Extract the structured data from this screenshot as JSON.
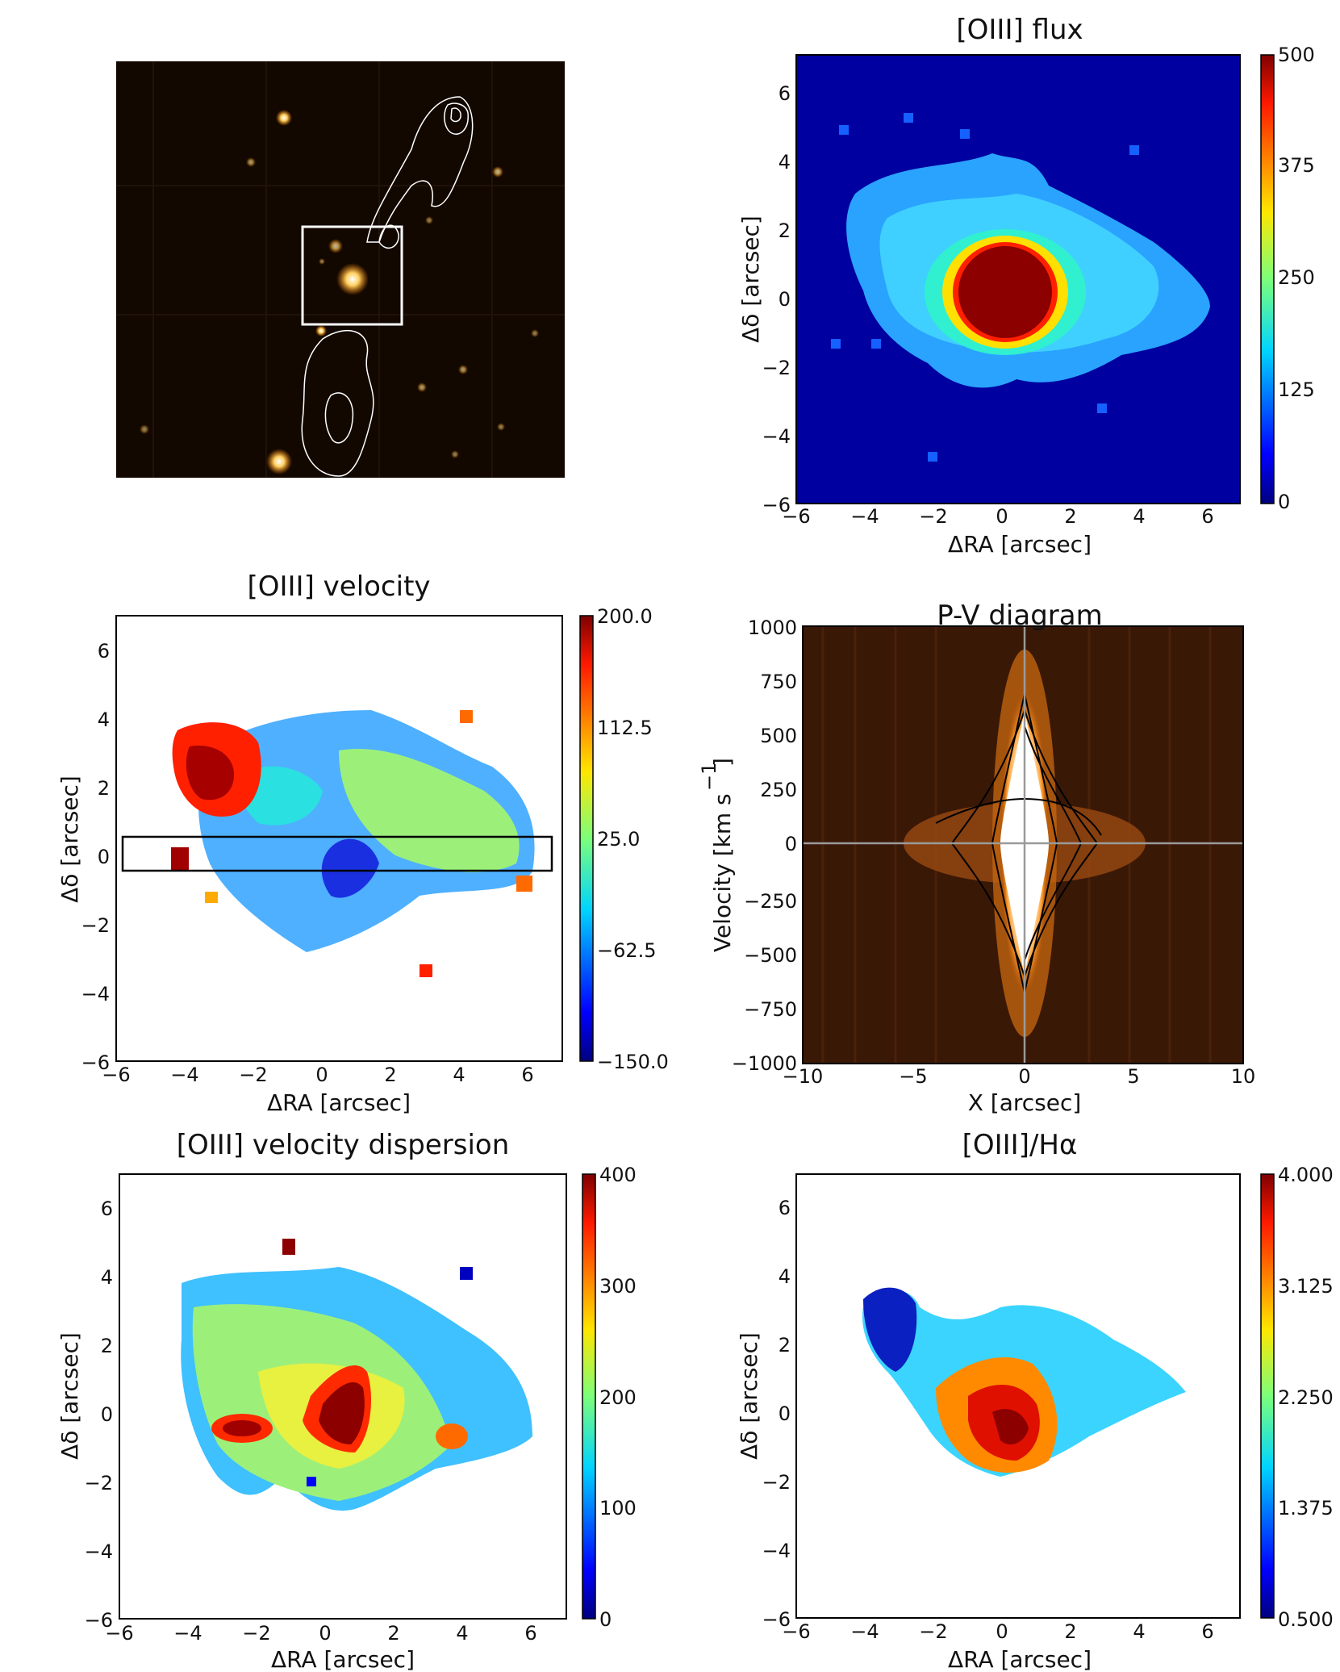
{
  "panels": [
    {
      "id": "image",
      "type": "image",
      "title": ""
    },
    {
      "id": "flux",
      "type": "heatmap",
      "title": "[OIII] flux",
      "xlabel": "ΔRA [arcsec]",
      "ylabel": "Δδ [arcsec]",
      "xticks": [
        "−6",
        "−4",
        "−2",
        "0",
        "2",
        "4",
        "6"
      ],
      "yticks": [
        "−6",
        "−4",
        "−2",
        "0",
        "2",
        "4",
        "6"
      ],
      "cbar": [
        "0",
        "125",
        "250",
        "375",
        "500"
      ]
    },
    {
      "id": "velocity",
      "type": "heatmap",
      "title": "[OIII] velocity",
      "xlabel": "ΔRA [arcsec]",
      "ylabel": "Δδ [arcsec]",
      "xticks": [
        "−6",
        "−4",
        "−2",
        "0",
        "2",
        "4",
        "6"
      ],
      "yticks": [
        "−6",
        "−4",
        "−2",
        "0",
        "2",
        "4",
        "6"
      ],
      "cbar": [
        "−150.0",
        "−62.5",
        "25.0",
        "112.5",
        "200.0"
      ]
    },
    {
      "id": "pv",
      "type": "heatmap",
      "title": "P-V diagram",
      "xlabel": "X [arcsec]",
      "ylabel": "Velocity [km s",
      "ylabel_sup": "−1",
      "ylabel_end": "]",
      "xticks": [
        "−10",
        "−5",
        "0",
        "5",
        "10"
      ],
      "yticks": [
        "−1000",
        "−750",
        "−500",
        "−250",
        "0",
        "250",
        "500",
        "750",
        "1000"
      ]
    },
    {
      "id": "dispersion",
      "type": "heatmap",
      "title": "[OIII] velocity dispersion",
      "xlabel": "ΔRA [arcsec]",
      "ylabel": "Δδ [arcsec]",
      "xticks": [
        "−6",
        "−4",
        "−2",
        "0",
        "2",
        "4",
        "6"
      ],
      "yticks": [
        "−6",
        "−4",
        "−2",
        "0",
        "2",
        "4",
        "6"
      ],
      "cbar": [
        "0",
        "100",
        "200",
        "300",
        "400"
      ]
    },
    {
      "id": "ratio",
      "type": "heatmap",
      "title": "[OIII]/Hα",
      "xlabel": "ΔRA [arcsec]",
      "ylabel": "Δδ [arcsec]",
      "xticks": [
        "−6",
        "−4",
        "−2",
        "0",
        "2",
        "4",
        "6"
      ],
      "yticks": [
        "−6",
        "−4",
        "−2",
        "0",
        "2",
        "4",
        "6"
      ],
      "cbar": [
        "0.500",
        "1.375",
        "2.250",
        "3.125",
        "4.000"
      ]
    }
  ],
  "chart_data": [
    {
      "type": "heatmap",
      "title": "[OIII] flux",
      "xlabel": "ΔRA [arcsec]",
      "ylabel": "Δδ [arcsec]",
      "xlim": [
        -6,
        7
      ],
      "ylim": [
        -6,
        7
      ],
      "clim": [
        0,
        500
      ],
      "description_values": {
        "peak_region": [
          0,
          0.2
        ],
        "peak_value": 500
      }
    },
    {
      "type": "heatmap",
      "title": "[OIII] velocity",
      "xlabel": "ΔRA [arcsec]",
      "ylabel": "Δδ [arcsec]",
      "xlim": [
        -6,
        7
      ],
      "ylim": [
        -6,
        7
      ],
      "clim": [
        -150,
        200
      ],
      "slit": {
        "x": [
          -5.9,
          6.6
        ],
        "y": [
          -0.45,
          0.5
        ]
      }
    },
    {
      "type": "heatmap",
      "title": "P-V diagram",
      "xlabel": "X [arcsec]",
      "ylabel": "Velocity [km s^-1]",
      "xlim": [
        -10,
        10
      ],
      "ylim": [
        -1000,
        1000
      ]
    },
    {
      "type": "heatmap",
      "title": "[OIII] velocity dispersion",
      "xlabel": "ΔRA [arcsec]",
      "ylabel": "Δδ [arcsec]",
      "xlim": [
        -6,
        7
      ],
      "ylim": [
        -6,
        7
      ],
      "clim": [
        0,
        400
      ]
    },
    {
      "type": "heatmap",
      "title": "[OIII]/Hα",
      "xlabel": "ΔRA [arcsec]",
      "ylabel": "Δδ [arcsec]",
      "xlim": [
        -6,
        7
      ],
      "ylim": [
        -6,
        7
      ],
      "clim": [
        0.5,
        4.0
      ]
    }
  ],
  "colors": {
    "frame": "#000000",
    "image_bg": "#120800",
    "text": "#111111"
  }
}
